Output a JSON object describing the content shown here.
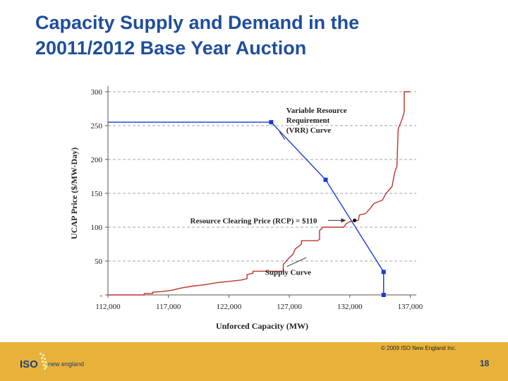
{
  "slide": {
    "title_line1": "Capacity Supply and Demand in the",
    "title_line2": "20011/2012 Base Year Auction",
    "copyright": "© 2009 ISO New England Inc.",
    "page_number": "18",
    "logo_iso": "ISO",
    "logo_ne": "new england"
  },
  "colors": {
    "title": "#1f4e9c",
    "footer": "#e8b23a",
    "demand_line": "#1a3ad6",
    "supply_line": "#c0332a"
  },
  "chart_data": {
    "type": "line",
    "xlabel": "Unforced Capacity (MW)",
    "ylabel": "UCAP Price ($/MW-Day)",
    "xlim": [
      112000,
      137500
    ],
    "ylim": [
      0,
      300
    ],
    "x_ticks": [
      112000,
      117000,
      122000,
      127000,
      132000,
      137000
    ],
    "x_tick_labels": [
      "112,000",
      "117,000",
      "122,000",
      "127,000",
      "132,000",
      "137,000"
    ],
    "y_ticks": [
      0,
      50,
      100,
      150,
      200,
      250,
      300
    ],
    "y_tick_labels": [
      "-",
      "50",
      "100",
      "150",
      "200",
      "250",
      "300"
    ],
    "grid": "horizontal-dashed",
    "series": [
      {
        "name": "Variable Resource Requirement (VRR) Curve",
        "color": "#1a3ad6",
        "points": [
          [
            112000,
            255
          ],
          [
            125500,
            255
          ],
          [
            130000,
            170
          ],
          [
            134800,
            34
          ],
          [
            134800,
            0
          ]
        ],
        "markers": [
          [
            125500,
            255
          ],
          [
            130000,
            170
          ],
          [
            134800,
            34
          ],
          [
            134800,
            0
          ]
        ]
      },
      {
        "name": "Supply Curve",
        "color": "#c0332a",
        "points": [
          [
            112000,
            0
          ],
          [
            115000,
            0
          ],
          [
            115000,
            2
          ],
          [
            115700,
            2
          ],
          [
            115700,
            4
          ],
          [
            116500,
            5
          ],
          [
            117300,
            7
          ],
          [
            118000,
            10
          ],
          [
            119000,
            13
          ],
          [
            120000,
            15
          ],
          [
            121000,
            18
          ],
          [
            122000,
            20
          ],
          [
            123000,
            22
          ],
          [
            123500,
            24
          ],
          [
            123500,
            30
          ],
          [
            124000,
            32
          ],
          [
            124000,
            35
          ],
          [
            126500,
            35
          ],
          [
            126500,
            45
          ],
          [
            127000,
            55
          ],
          [
            127300,
            60
          ],
          [
            127500,
            68
          ],
          [
            127800,
            72
          ],
          [
            128000,
            75
          ],
          [
            128000,
            80
          ],
          [
            129300,
            80
          ],
          [
            129500,
            82
          ],
          [
            129500,
            95
          ],
          [
            129800,
            100
          ],
          [
            131500,
            100
          ],
          [
            131700,
            105
          ],
          [
            132000,
            108
          ],
          [
            132700,
            110
          ],
          [
            132800,
            118
          ],
          [
            133300,
            120
          ],
          [
            133700,
            128
          ],
          [
            134000,
            135
          ],
          [
            134700,
            140
          ],
          [
            135000,
            150
          ],
          [
            135500,
            160
          ],
          [
            135700,
            180
          ],
          [
            135900,
            190
          ],
          [
            136000,
            245
          ],
          [
            136300,
            258
          ],
          [
            136500,
            270
          ],
          [
            136500,
            300
          ],
          [
            137000,
            300
          ]
        ]
      }
    ],
    "annotations": [
      {
        "text_lines": [
          "Variable Resource",
          "Requirement",
          "(VRR) Curve"
        ],
        "points_to": [
          126300,
          245
        ]
      },
      {
        "text_lines": [
          "Resource Clearing Price (RCP) = $110"
        ],
        "points_to": [
          131400,
          110
        ],
        "marker_at": [
          132400,
          110
        ]
      },
      {
        "text_lines": [
          "Supply Curve"
        ],
        "points_to": [
          128400,
          55
        ]
      }
    ]
  }
}
